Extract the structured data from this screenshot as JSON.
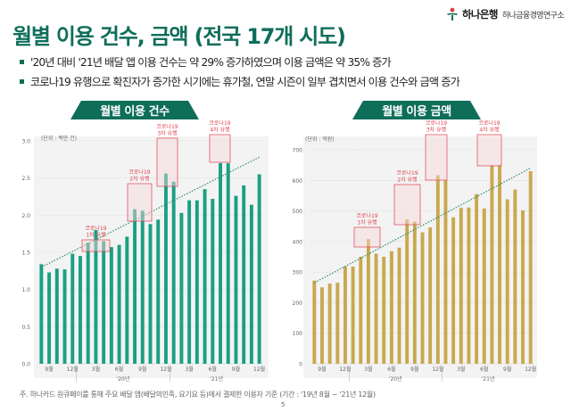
{
  "header": {
    "title": "월별 이용 건수, 금액 (전국 17개 시도)",
    "logo_main": "하나은행",
    "logo_sub": "하나금융경영연구소"
  },
  "bullets": [
    "'20년 대비 '21년 배달 앱 이용 건수는 약 29% 증가하였으며 이용 금액은 약 35% 증가",
    "코로나19 유행으로 확진자가 증가한 시기에는 휴가철, 연말 시즌이 일부 겹치면서 이용 건수와 금액 증가"
  ],
  "colors": {
    "brand": "#0f6e5a",
    "bar_count": "#1aa084",
    "bar_amount": "#c9a84e",
    "highlight": "#e0424c"
  },
  "chart_data": [
    {
      "type": "bar",
      "title": "월별 이용 건수",
      "unit": "(단위 : 백만 건)",
      "categories": [
        "19-08",
        "19-09",
        "19-10",
        "19-11",
        "19-12",
        "20-01",
        "20-02",
        "20-03",
        "20-04",
        "20-05",
        "20-06",
        "20-07",
        "20-08",
        "20-09",
        "20-10",
        "20-11",
        "20-12",
        "21-01",
        "21-02",
        "21-03",
        "21-04",
        "21-05",
        "21-06",
        "21-07",
        "21-08",
        "21-09",
        "21-10",
        "21-11",
        "21-12"
      ],
      "values": [
        1.34,
        1.23,
        1.28,
        1.27,
        1.48,
        1.45,
        1.63,
        1.8,
        1.65,
        1.57,
        1.6,
        1.71,
        2.08,
        2.06,
        1.88,
        1.94,
        2.56,
        2.45,
        2.03,
        2.2,
        2.2,
        2.35,
        2.22,
        2.7,
        2.7,
        2.26,
        2.4,
        2.14,
        2.55
      ],
      "ylim": [
        0,
        3.0
      ],
      "yticks": [
        "0.0",
        "0.5",
        "1.0",
        "1.5",
        "2.0",
        "2.5",
        "3.0"
      ],
      "xtick_labels": [
        "9월",
        "12월",
        "3월",
        "6월",
        "9월",
        "12월",
        "3월",
        "6월",
        "9월",
        "12월"
      ],
      "year_labels": [
        "'20년",
        "'21년"
      ],
      "trendline": [
        1.3,
        2.78
      ],
      "annotations": [
        {
          "line1": "코로나19",
          "line2": "1차 유행"
        },
        {
          "line1": "코로나19",
          "line2": "2차 유행"
        },
        {
          "line1": "코로나19",
          "line2": "3차 유행"
        },
        {
          "line1": "코로나19",
          "line2": "4차 유행"
        }
      ]
    },
    {
      "type": "bar",
      "title": "월별 이용 금액",
      "unit": "(단위 : 억원)",
      "categories": [
        "19-08",
        "19-09",
        "19-10",
        "19-11",
        "19-12",
        "20-01",
        "20-02",
        "20-03",
        "20-04",
        "20-05",
        "20-06",
        "20-07",
        "20-08",
        "20-09",
        "20-10",
        "20-11",
        "20-12",
        "21-01",
        "21-02",
        "21-03",
        "21-04",
        "21-05",
        "21-06",
        "21-07",
        "21-08",
        "21-09",
        "21-10",
        "21-11",
        "21-12"
      ],
      "values": [
        272,
        250,
        262,
        265,
        318,
        318,
        350,
        408,
        360,
        350,
        368,
        380,
        472,
        465,
        430,
        446,
        617,
        600,
        479,
        510,
        511,
        555,
        508,
        650,
        650,
        538,
        570,
        502,
        630
      ],
      "ylim": [
        0,
        700
      ],
      "yticks": [
        "0",
        "100",
        "200",
        "300",
        "400",
        "500",
        "600",
        "700"
      ],
      "xtick_labels": [
        "9월",
        "12월",
        "3월",
        "6월",
        "9월",
        "12월",
        "3월",
        "6월",
        "9월",
        "12월"
      ],
      "year_labels": [
        "'20년",
        "'21년"
      ],
      "trendline": [
        265,
        640
      ],
      "annotations": [
        {
          "line1": "코로나19",
          "line2": "1차 유행"
        },
        {
          "line1": "코로나19",
          "line2": "2차 유행"
        },
        {
          "line1": "코로나19",
          "line2": "3차 유행"
        },
        {
          "line1": "코로나19",
          "line2": "4차 유행"
        }
      ]
    }
  ],
  "footnote": "주. 하나카드 원큐페이를 통해 주요 배달 앱(배달의민족, 요기요 등)에서 결제한 이용자 기준 (기간 : '19년 8월 ~ '21년 12월)",
  "page_number": "5"
}
